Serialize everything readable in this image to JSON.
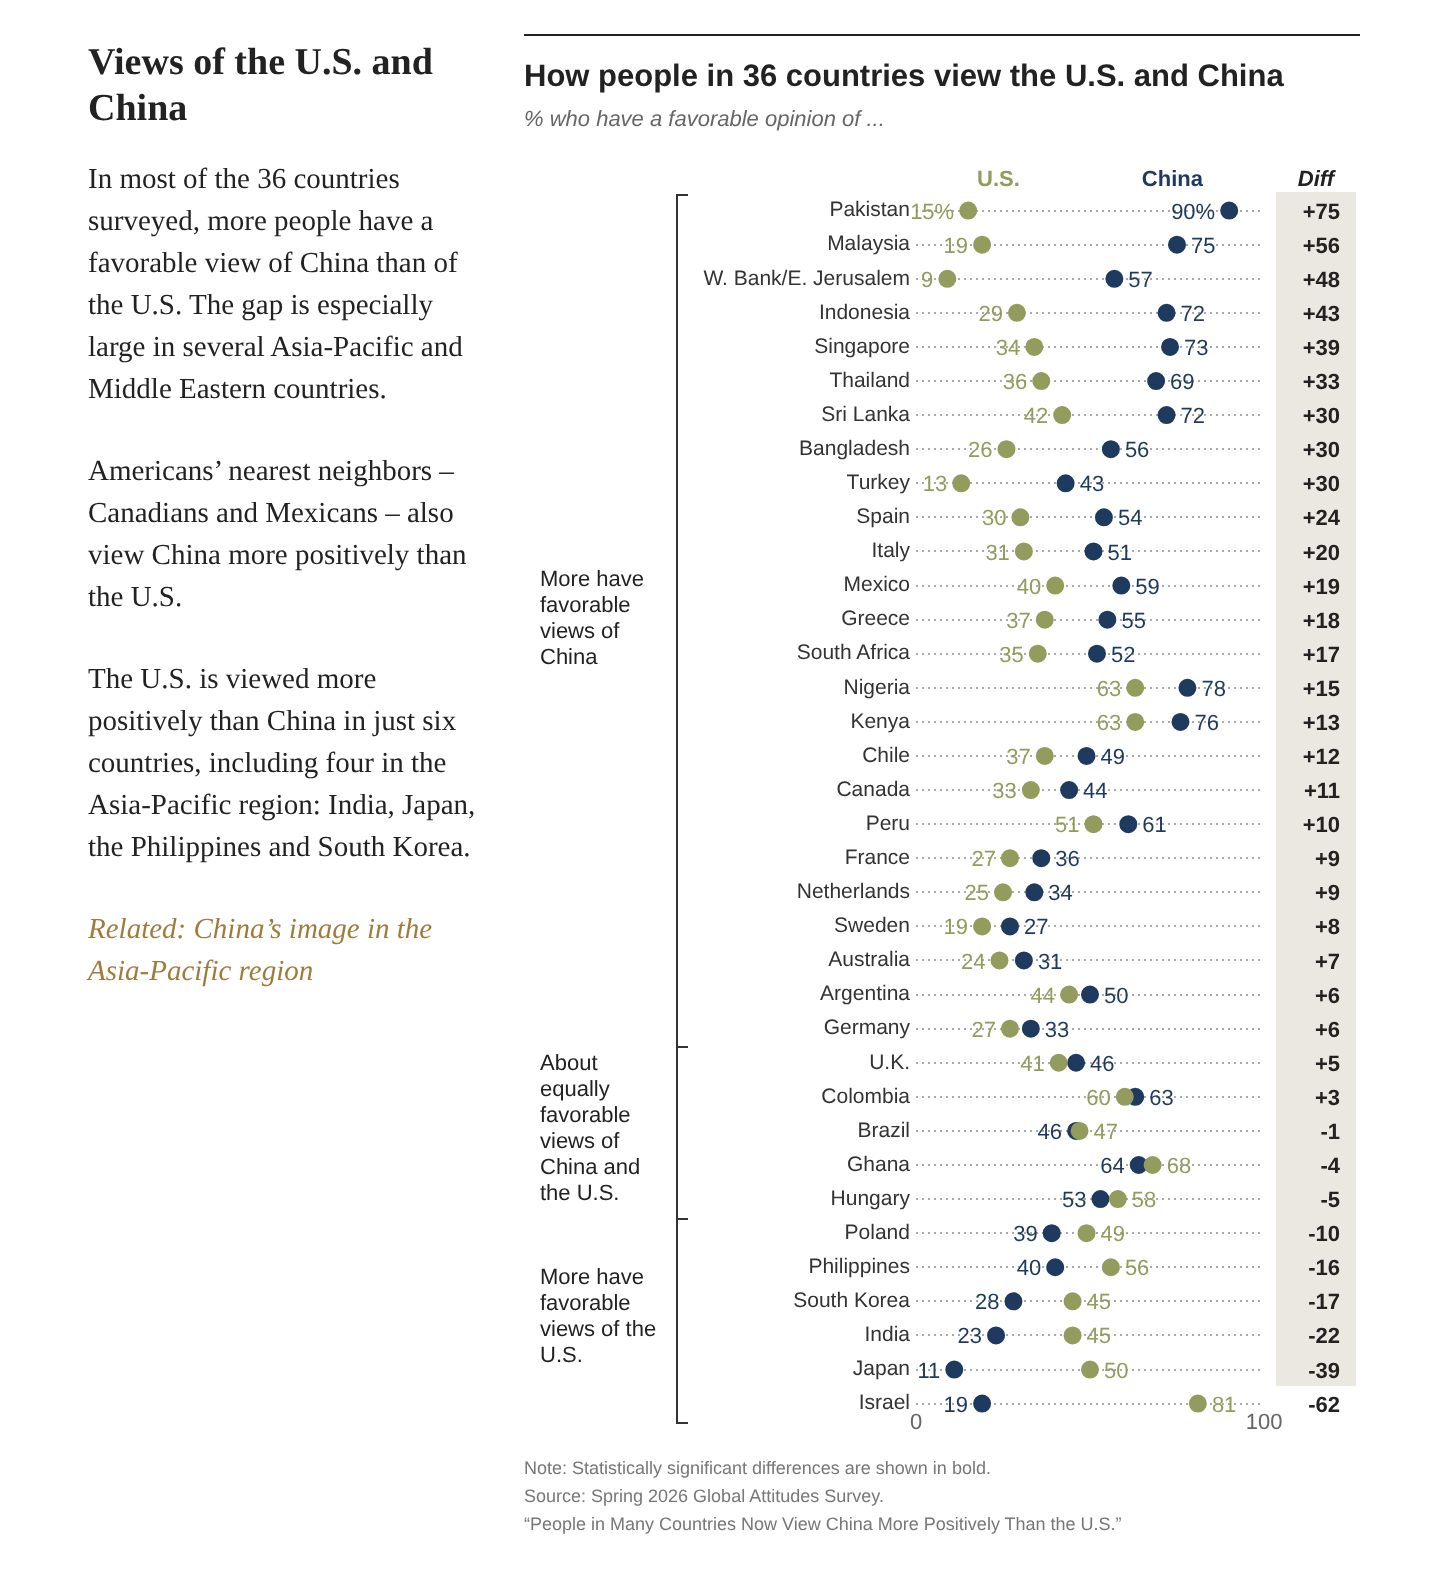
{
  "chart_data": {
    "type": "scatter",
    "orientation": "horizontal",
    "title": "How people in 36 countries view the U.S. and China",
    "subtitle": "% who have a favorable opinion of ...",
    "categories": [
      "Pakistan",
      "Malaysia",
      "W. Bank/E. Jerusalem",
      "Indonesia",
      "Singapore",
      "Thailand",
      "Sri Lanka",
      "Bangladesh",
      "Turkey",
      "Spain",
      "Italy",
      "Mexico",
      "Greece",
      "South Africa",
      "Nigeria",
      "Kenya",
      "Chile",
      "Canada",
      "Peru",
      "France",
      "Netherlands",
      "Sweden",
      "Australia",
      "Argentina",
      "Germany",
      "U.K.",
      "Colombia",
      "Brazil",
      "Ghana",
      "Hungary",
      "Poland",
      "Philippines",
      "South Korea",
      "India",
      "Japan",
      "Israel"
    ],
    "series": [
      {
        "name": "U.S.",
        "color": "#939c5c",
        "values": [
          15,
          19,
          9,
          29,
          34,
          36,
          42,
          26,
          13,
          30,
          31,
          40,
          37,
          35,
          63,
          63,
          37,
          33,
          51,
          27,
          25,
          19,
          24,
          44,
          27,
          41,
          60,
          47,
          68,
          58,
          49,
          56,
          45,
          45,
          50,
          81
        ],
        "value_labels": [
          "15%",
          "19",
          "9",
          "29",
          "34",
          "36",
          "42",
          "26",
          "13",
          "30",
          "31",
          "40",
          "37",
          "35",
          "63",
          "63",
          "37",
          "33",
          "51",
          "27",
          "25",
          "19",
          "24",
          "44",
          "27",
          "41",
          "60",
          "47",
          "68",
          "58",
          "49",
          "56",
          "45",
          "45",
          "50",
          "81"
        ]
      },
      {
        "name": "China",
        "color": "#1f3a5f",
        "values": [
          90,
          75,
          57,
          72,
          73,
          69,
          72,
          56,
          43,
          54,
          51,
          59,
          55,
          52,
          78,
          76,
          49,
          44,
          61,
          36,
          34,
          27,
          31,
          50,
          33,
          46,
          63,
          46,
          64,
          53,
          39,
          40,
          28,
          23,
          11,
          19
        ],
        "value_labels": [
          "90%",
          "75",
          "57",
          "72",
          "73",
          "69",
          "72",
          "56",
          "43",
          "54",
          "51",
          "59",
          "55",
          "52",
          "78",
          "76",
          "49",
          "44",
          "61",
          "36",
          "34",
          "27",
          "31",
          "50",
          "33",
          "46",
          "63",
          "46",
          "64",
          "53",
          "39",
          "40",
          "28",
          "23",
          "11",
          "19"
        ]
      }
    ],
    "xlim": [
      0,
      100
    ],
    "xticks": [
      0,
      100
    ],
    "grid": "y",
    "legend": "top",
    "marker": "circle",
    "annotations": [
      "Views of the U.S. and China",
      "In most of the 36 countries surveyed, more people have a favorable view of China than of the U.S. The gap is especially large in several Asia-Pacific and Middle Eastern countries.",
      "Americans’ nearest neighbors – Canadians and Mexicans – also view China more positively than the U.S.",
      "The U.S. is viewed more positively than China in just six countries, including four in the Asia-Pacific region: India, Japan, the Philippines and South Korea.",
      "Related: China’s image in the Asia-Pacific region",
      "Diff",
      "Note: Statistically significant differences are shown in bold.",
      "Source: Spring 2026 Global Attitudes Survey.",
      "“People in Many Countries Now View China More Positively Than the U.S.”",
      "More have favorable views of China",
      "About equally favorable views of China and the U.S.",
      "More have favorable views of the U.S.",
      "+75",
      "+56",
      "+48",
      "+43",
      "+39",
      "+33",
      "+30",
      "+30",
      "+30",
      "+24",
      "+20",
      "+19",
      "+18",
      "+17",
      "+15",
      "+13",
      "+12",
      "+11",
      "+10",
      "+9",
      "+9",
      "+8",
      "+7",
      "+6",
      "+6",
      "+5",
      "+3",
      "-1",
      "-4",
      "-5",
      "-10",
      "-16",
      "-17",
      "-22",
      "-39",
      "-62"
    ]
  }
}
